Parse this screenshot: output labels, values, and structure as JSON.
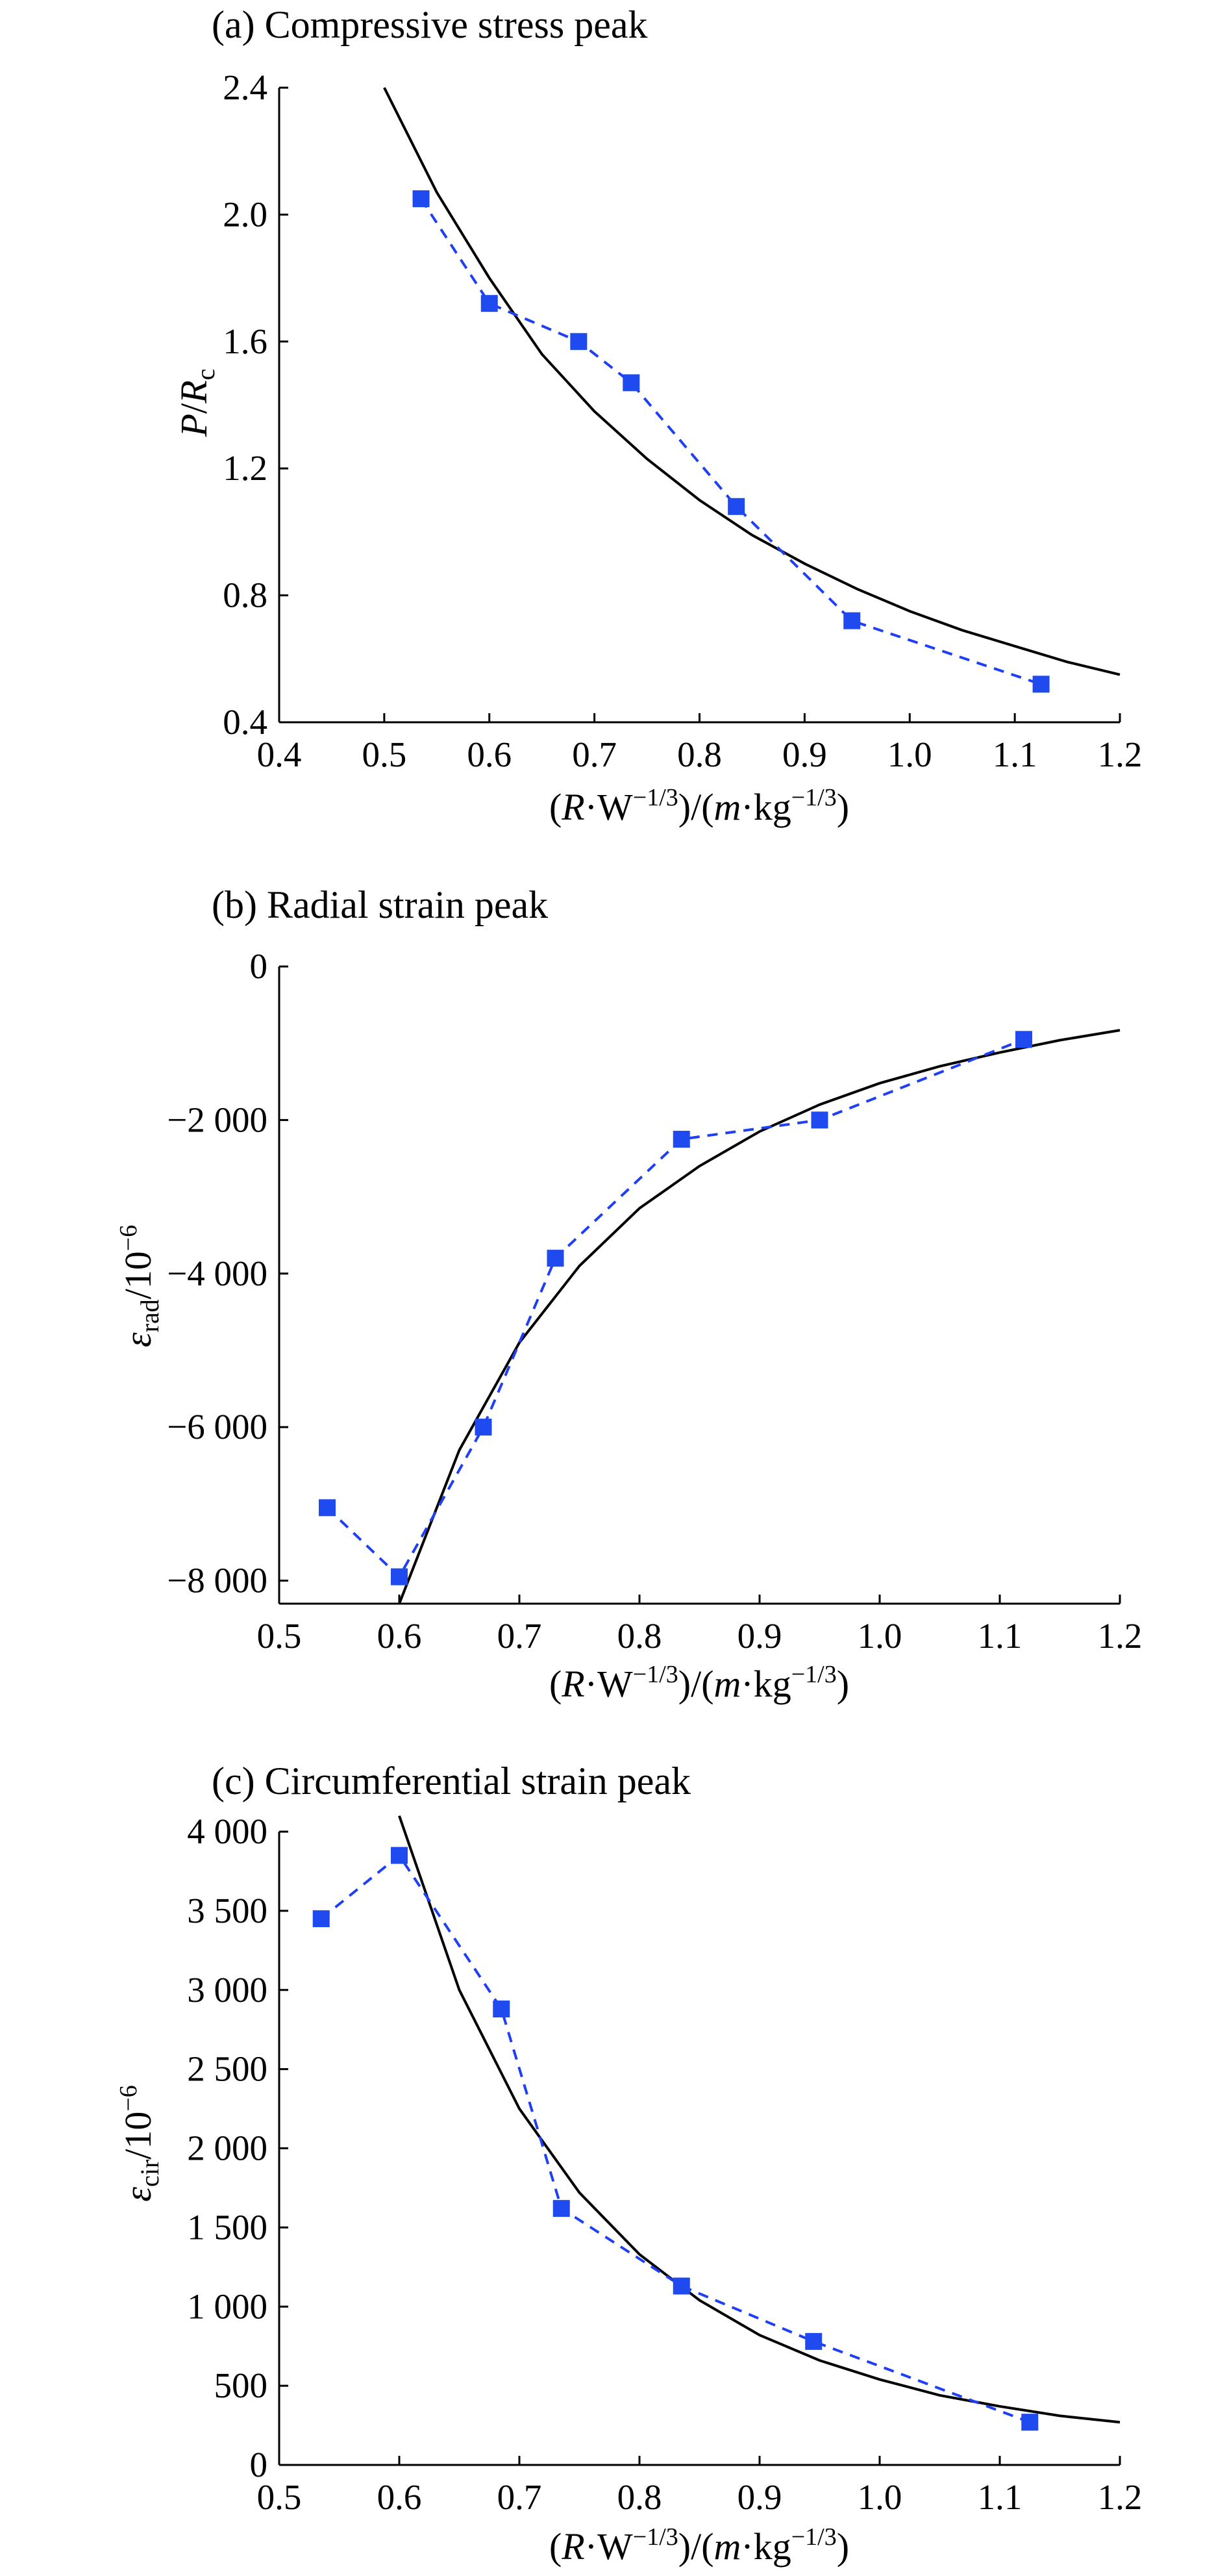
{
  "chart_data": [
    {
      "type": "line",
      "title": "(a) Compressive stress peak",
      "xlabel": "(R·W−1/3)/(m·kg−1/3)",
      "ylabel": "P/Rc",
      "xlim": [
        0.4,
        1.2
      ],
      "ylim": [
        0.4,
        2.4
      ],
      "xticks": [
        "0.4",
        "0.5",
        "0.6",
        "0.7",
        "0.8",
        "0.9",
        "1.0",
        "1.1",
        "1.2"
      ],
      "yticks": [
        "0.4",
        "0.8",
        "1.2",
        "1.6",
        "2.0",
        "2.4"
      ],
      "series": [
        {
          "style": "solid-black",
          "x": [
            0.5,
            0.55,
            0.6,
            0.65,
            0.7,
            0.75,
            0.8,
            0.85,
            0.9,
            0.95,
            1.0,
            1.05,
            1.1,
            1.15,
            1.2
          ],
          "y": [
            2.4,
            2.07,
            1.8,
            1.56,
            1.38,
            1.23,
            1.1,
            0.99,
            0.9,
            0.82,
            0.75,
            0.69,
            0.64,
            0.59,
            0.55
          ]
        },
        {
          "style": "dashed-blue-squares",
          "x": [
            0.535,
            0.6,
            0.685,
            0.735,
            0.835,
            0.945,
            1.125
          ],
          "y": [
            2.05,
            1.72,
            1.6,
            1.47,
            1.08,
            0.72,
            0.52
          ]
        }
      ]
    },
    {
      "type": "line",
      "title": "(b) Radial strain peak",
      "xlabel": "(R·W−1/3)/(m·kg−1/3)",
      "ylabel": "εrad/10−6",
      "xlim": [
        0.5,
        1.2
      ],
      "ylim": [
        -8300,
        0
      ],
      "xticks": [
        "0.5",
        "0.6",
        "0.7",
        "0.8",
        "0.9",
        "1.0",
        "1.1",
        "1.2"
      ],
      "yticks": [
        "0",
        "−2 000",
        "−4 000",
        "−6 000",
        "−8 000"
      ],
      "series": [
        {
          "style": "solid-black",
          "x": [
            0.6,
            0.65,
            0.7,
            0.75,
            0.8,
            0.85,
            0.9,
            0.95,
            1.0,
            1.05,
            1.1,
            1.15,
            1.2
          ],
          "y": [
            -8300,
            -6300,
            -4900,
            -3900,
            -3150,
            -2600,
            -2150,
            -1800,
            -1520,
            -1300,
            -1120,
            -960,
            -830
          ]
        },
        {
          "style": "dashed-blue-squares",
          "x": [
            0.54,
            0.6,
            0.67,
            0.73,
            0.835,
            0.95,
            1.12
          ],
          "y": [
            -7050,
            -7950,
            -6000,
            -3800,
            -2250,
            -2000,
            -950
          ]
        }
      ]
    },
    {
      "type": "line",
      "title": "(c) Circumferential strain peak",
      "xlabel": "(R·W−1/3)/(m·kg−1/3)",
      "ylabel": "εcir/10−6",
      "xlim": [
        0.5,
        1.2
      ],
      "ylim": [
        0,
        4000
      ],
      "xticks": [
        "0.5",
        "0.6",
        "0.7",
        "0.8",
        "0.9",
        "1.0",
        "1.1",
        "1.2"
      ],
      "yticks": [
        "0",
        "500",
        "1 000",
        "1 500",
        "2 000",
        "2 500",
        "3 000",
        "3 500",
        "4 000"
      ],
      "series": [
        {
          "style": "solid-black",
          "x": [
            0.6,
            0.65,
            0.7,
            0.75,
            0.8,
            0.85,
            0.9,
            0.95,
            1.0,
            1.05,
            1.1,
            1.15,
            1.2
          ],
          "y": [
            4100,
            3000,
            2250,
            1720,
            1330,
            1040,
            820,
            660,
            540,
            440,
            370,
            310,
            270
          ]
        },
        {
          "style": "dashed-blue-squares",
          "x": [
            0.535,
            0.6,
            0.685,
            0.735,
            0.835,
            0.945,
            1.125
          ],
          "y": [
            3450,
            3850,
            2880,
            1620,
            1130,
            780,
            270
          ]
        }
      ]
    }
  ]
}
